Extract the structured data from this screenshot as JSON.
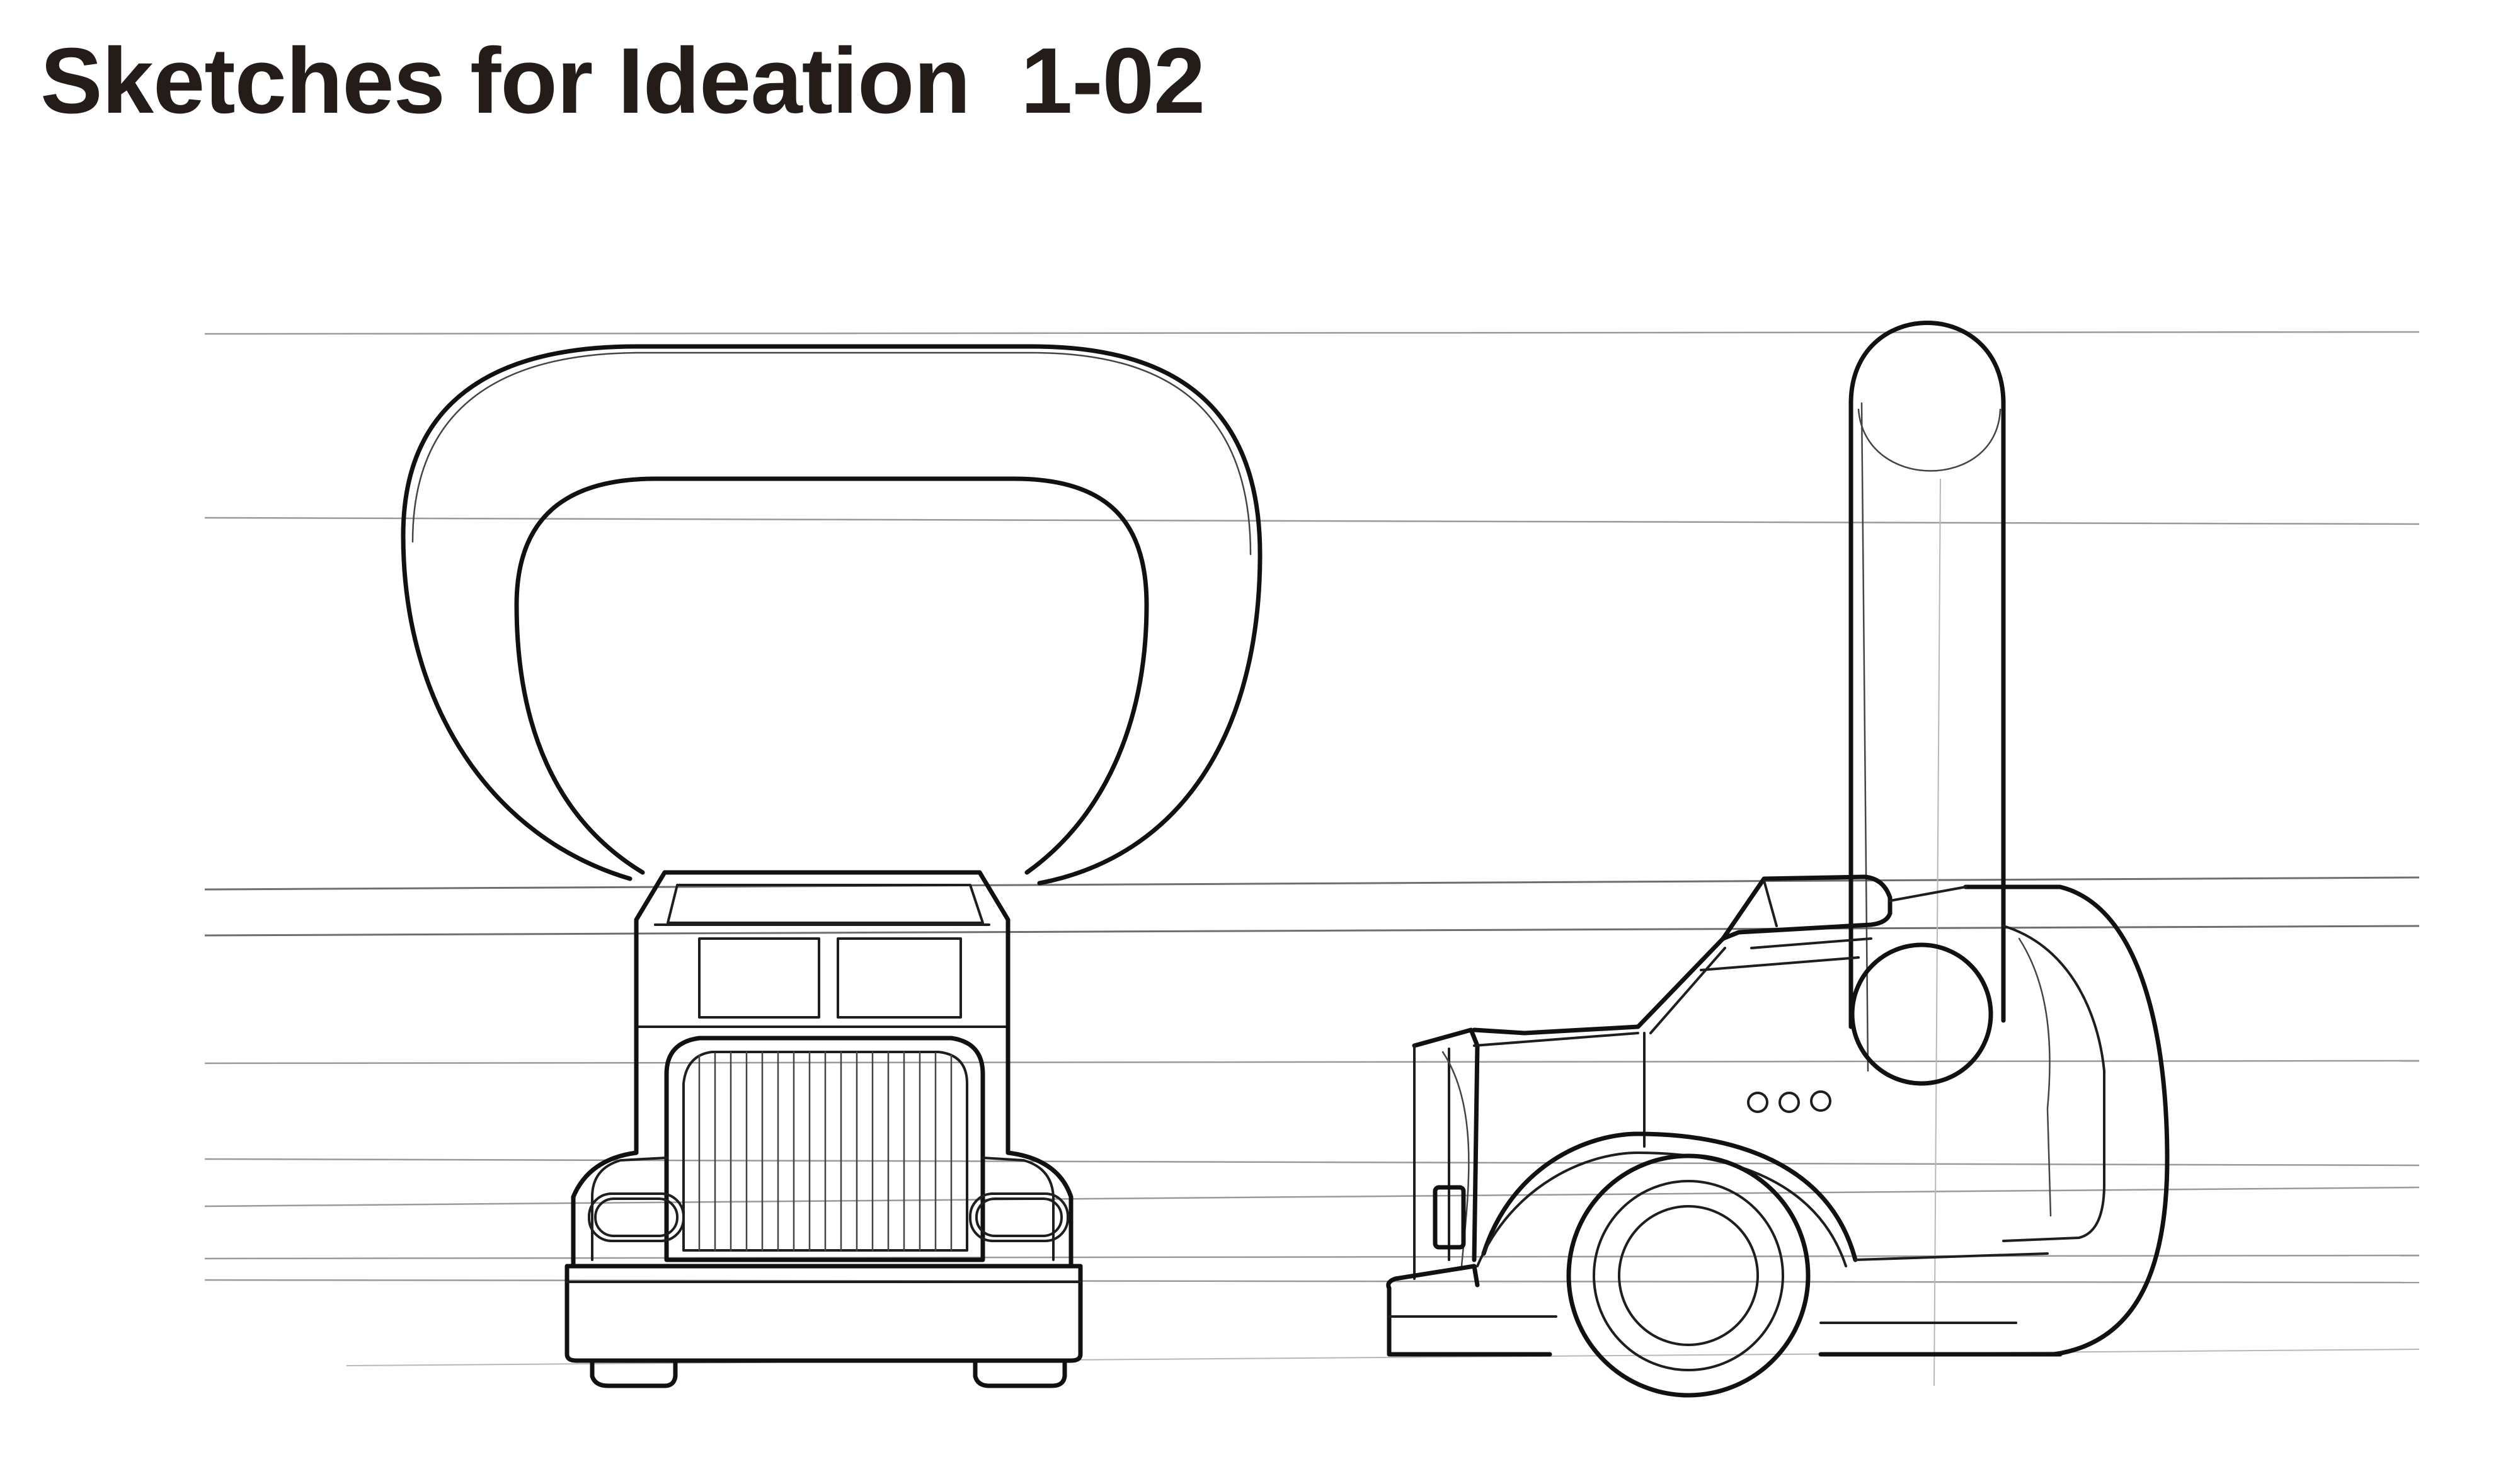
{
  "page": {
    "title": "Sketches for Ideation  1-02",
    "background": "#ffffff",
    "ink_color": "#231c18"
  },
  "sketches": [
    {
      "view": "front",
      "subject": "truck front view with large rounded loop handle"
    },
    {
      "view": "side",
      "subject": "truck side view with vertical exhaust stack"
    }
  ]
}
